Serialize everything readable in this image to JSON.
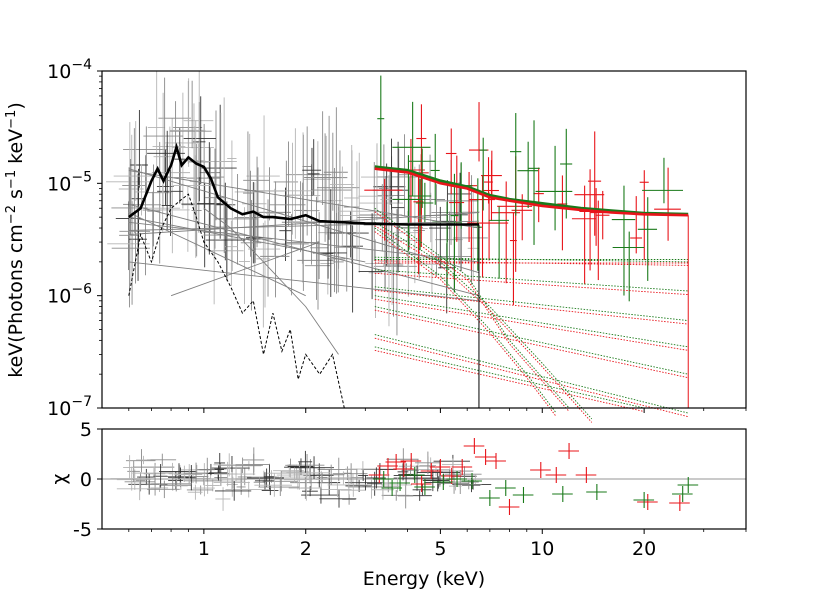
{
  "chart_data": [
    {
      "type": "line",
      "panel": "spectrum",
      "xscale": "log",
      "yscale": "log",
      "xlim": [
        0.5,
        40
      ],
      "ylim": [
        1e-07,
        0.0001
      ],
      "ylabel_parts": {
        "pre": "keV(Photons cm",
        "exp1": "−2",
        "mid": " s",
        "exp2": "−1",
        "mid2": " keV",
        "exp3": "−1",
        "post": ")"
      },
      "y_ticks": [
        {
          "value": 1e-07,
          "base": "10",
          "exp": "−7"
        },
        {
          "value": 1e-06,
          "base": "10",
          "exp": "−6"
        },
        {
          "value": 1e-05,
          "base": "10",
          "exp": "−5"
        },
        {
          "value": 0.0001,
          "base": "10",
          "exp": "−4"
        }
      ],
      "colors": {
        "soft": "#000000",
        "soft_points": "#8a8a8a",
        "hard_a": "#e8141a",
        "hard_b": "#1a7a1a",
        "component": "#7f7f7f"
      },
      "series": [
        {
          "name": "soft total model",
          "color": "#000000",
          "x": [
            0.6,
            0.65,
            0.7,
            0.73,
            0.76,
            0.8,
            0.83,
            0.86,
            0.9,
            0.95,
            1.0,
            1.05,
            1.1,
            1.2,
            1.3,
            1.4,
            1.5,
            1.6,
            1.8,
            2.0,
            2.2,
            2.6,
            3.0,
            4.0,
            5.0,
            6.5
          ],
          "y": [
            5e-06,
            6e-06,
            1.05e-05,
            1.35e-05,
            1.05e-05,
            1.45e-05,
            2.1e-05,
            1.45e-05,
            1.7e-05,
            1.5e-05,
            1.4e-05,
            1.1e-05,
            7.5e-06,
            6e-06,
            5.3e-06,
            5.6e-06,
            5e-06,
            5e-06,
            4.8e-06,
            5.2e-06,
            4.6e-06,
            4.5e-06,
            4.4e-06,
            4.3e-06,
            4.3e-06,
            4.3e-06
          ]
        },
        {
          "name": "soft dashed component",
          "color": "#000000",
          "dashed": true,
          "x": [
            0.6,
            0.65,
            0.7,
            0.75,
            0.8,
            0.85,
            0.9,
            0.95,
            1.0,
            1.1,
            1.2,
            1.3,
            1.4,
            1.5,
            1.6,
            1.7,
            1.8,
            1.9,
            2.0,
            2.2,
            2.4,
            2.6
          ],
          "y": [
            1e-06,
            3.5e-06,
            2e-06,
            4e-06,
            6e-06,
            7e-06,
            8e-06,
            5e-06,
            3e-06,
            2e-06,
            1.2e-06,
            7e-07,
            9e-07,
            3e-07,
            7e-07,
            3.2e-07,
            5e-07,
            1.8e-07,
            3e-07,
            2e-07,
            3e-07,
            1e-07
          ]
        },
        {
          "name": "hard total model A",
          "color": "#e8141a",
          "x": [
            3.2,
            4,
            5,
            6,
            7,
            8,
            10,
            13,
            16,
            20,
            27
          ],
          "y": [
            1.35e-05,
            1.25e-05,
            1e-05,
            9e-06,
            7.5e-06,
            7e-06,
            6.3e-06,
            5.8e-06,
            5.5e-06,
            5.3e-06,
            5.2e-06
          ]
        },
        {
          "name": "hard total model B",
          "color": "#1a7a1a",
          "x": [
            3.2,
            4,
            5,
            6,
            7,
            8,
            10,
            13,
            16,
            20,
            27
          ],
          "y": [
            1.4e-05,
            1.3e-05,
            1.05e-05,
            9.3e-06,
            7.8e-06,
            7.2e-06,
            6.6e-06,
            6e-06,
            5.7e-06,
            5.4e-06,
            5.3e-06
          ]
        }
      ],
      "soft_components": [
        {
          "x": [
            0.6,
            6.5
          ],
          "y": [
            6.5e-06,
            1e-06
          ]
        },
        {
          "x": [
            0.6,
            6.5
          ],
          "y": [
            1.3e-05,
            4e-06
          ]
        },
        {
          "x": [
            0.6,
            6.5
          ],
          "y": [
            3.5e-06,
            5.5e-06
          ]
        },
        {
          "x": [
            0.6,
            6.5
          ],
          "y": [
            2e-06,
            9e-07
          ]
        },
        {
          "x": [
            0.6,
            6.5
          ],
          "y": [
            4.5e-06,
            2e-06
          ]
        },
        {
          "x": [
            0.6,
            3.0
          ],
          "y": [
            5e-06,
            2e-06
          ]
        },
        {
          "x": [
            0.6,
            2.0
          ],
          "y": [
            5.5e-06,
            1e-06
          ]
        },
        {
          "x": [
            0.8,
            2.2
          ],
          "y": [
            1e-06,
            3e-06
          ]
        },
        {
          "x": [
            0.6,
            6.5
          ],
          "y": [
            1.35e-05,
            1.6e-06
          ]
        },
        {
          "x": [
            0.6,
            6.5
          ],
          "y": [
            3.8e-06,
            4.6e-06
          ]
        },
        {
          "x": [
            1.0,
            1.2,
            1.5,
            2.0,
            2.5
          ],
          "y": [
            6e-06,
            4e-06,
            2e-06,
            8e-07,
            3e-07
          ]
        }
      ],
      "hard_components": [
        {
          "x": [
            3.2,
            27
          ],
          "y": [
            2.2e-06,
            2e-06
          ]
        },
        {
          "x": [
            3.2,
            27
          ],
          "y": [
            2.1e-06,
            2.1e-06
          ]
        },
        {
          "x": [
            3.2,
            27
          ],
          "y": [
            1.7e-06,
            1.1e-06
          ]
        },
        {
          "x": [
            3.2,
            27
          ],
          "y": [
            1.2e-06,
            6e-07
          ]
        },
        {
          "x": [
            3.2,
            27
          ],
          "y": [
            1e-06,
            3.5e-07
          ]
        },
        {
          "x": [
            3.2,
            27
          ],
          "y": [
            8e-07,
            2e-07
          ]
        },
        {
          "x": [
            3.2,
            27
          ],
          "y": [
            4.5e-07,
            9e-08
          ]
        },
        {
          "x": [
            3.2,
            20
          ],
          "y": [
            3.5e-07,
            1e-07
          ]
        },
        {
          "x": [
            3.2,
            5,
            7,
            9,
            11
          ],
          "y": [
            4e-06,
            1.5e-06,
            5e-07,
            2e-07,
            9e-08
          ]
        },
        {
          "x": [
            3.2,
            6,
            8,
            12
          ],
          "y": [
            6e-06,
            1.5e-06,
            4e-07,
            1e-07
          ]
        },
        {
          "x": [
            3.2,
            5,
            7,
            10,
            14
          ],
          "y": [
            4.5e-06,
            2e-06,
            8e-07,
            2.5e-07,
            8e-08
          ]
        }
      ]
    },
    {
      "type": "scatter",
      "panel": "residuals",
      "xscale": "log",
      "xlim": [
        0.5,
        40
      ],
      "ylim": [
        -5,
        5
      ],
      "xlabel": "Energy (keV)",
      "ylabel": "χ",
      "y_ticks": [
        "5",
        "0",
        "-5"
      ],
      "x_ticks": [
        {
          "value": 1,
          "label": "1"
        },
        {
          "value": 2,
          "label": "2"
        },
        {
          "value": 5,
          "label": "5"
        },
        {
          "value": 10,
          "label": "10"
        },
        {
          "value": 20,
          "label": "20"
        }
      ],
      "zero_line": 0,
      "hard_points": [
        {
          "x": 3.3,
          "y": 0.4,
          "c": "a"
        },
        {
          "x": 3.5,
          "y": 1.3,
          "c": "a"
        },
        {
          "x": 3.7,
          "y": 1.7,
          "c": "a"
        },
        {
          "x": 3.9,
          "y": 1.0,
          "c": "a"
        },
        {
          "x": 4.1,
          "y": 1.8,
          "c": "a"
        },
        {
          "x": 4.4,
          "y": -0.5,
          "c": "a"
        },
        {
          "x": 4.7,
          "y": 0.8,
          "c": "a"
        },
        {
          "x": 5.0,
          "y": 1.2,
          "c": "a"
        },
        {
          "x": 5.4,
          "y": 0.3,
          "c": "a"
        },
        {
          "x": 5.8,
          "y": 1.2,
          "c": "a"
        },
        {
          "x": 6.3,
          "y": 3.3,
          "c": "a"
        },
        {
          "x": 6.8,
          "y": 2.2,
          "c": "a"
        },
        {
          "x": 7.3,
          "y": 1.8,
          "c": "a"
        },
        {
          "x": 8.0,
          "y": -2.8,
          "c": "a"
        },
        {
          "x": 9.9,
          "y": 0.9,
          "c": "a"
        },
        {
          "x": 11.0,
          "y": 0.4,
          "c": "a"
        },
        {
          "x": 12.0,
          "y": 2.8,
          "c": "a"
        },
        {
          "x": 13.5,
          "y": 0.4,
          "c": "a"
        },
        {
          "x": 20.5,
          "y": -2.3,
          "c": "a"
        },
        {
          "x": 25.5,
          "y": -2.4,
          "c": "a"
        },
        {
          "x": 3.4,
          "y": 0.0,
          "c": "b"
        },
        {
          "x": 3.6,
          "y": -0.9,
          "c": "b"
        },
        {
          "x": 3.8,
          "y": -0.4,
          "c": "b"
        },
        {
          "x": 4.2,
          "y": 0.4,
          "c": "b"
        },
        {
          "x": 4.5,
          "y": -0.8,
          "c": "b"
        },
        {
          "x": 5.1,
          "y": -0.3,
          "c": "b"
        },
        {
          "x": 5.6,
          "y": 0.0,
          "c": "b"
        },
        {
          "x": 6.2,
          "y": -0.2,
          "c": "b"
        },
        {
          "x": 7.0,
          "y": -1.9,
          "c": "b"
        },
        {
          "x": 7.8,
          "y": -0.9,
          "c": "b"
        },
        {
          "x": 8.8,
          "y": -1.6,
          "c": "b"
        },
        {
          "x": 11.5,
          "y": -1.5,
          "c": "b"
        },
        {
          "x": 14.5,
          "y": -1.3,
          "c": "b"
        },
        {
          "x": 20.0,
          "y": -2.1,
          "c": "b"
        },
        {
          "x": 26.0,
          "y": -1.5,
          "c": "b"
        },
        {
          "x": 27.0,
          "y": -0.6,
          "c": "b"
        }
      ]
    }
  ]
}
